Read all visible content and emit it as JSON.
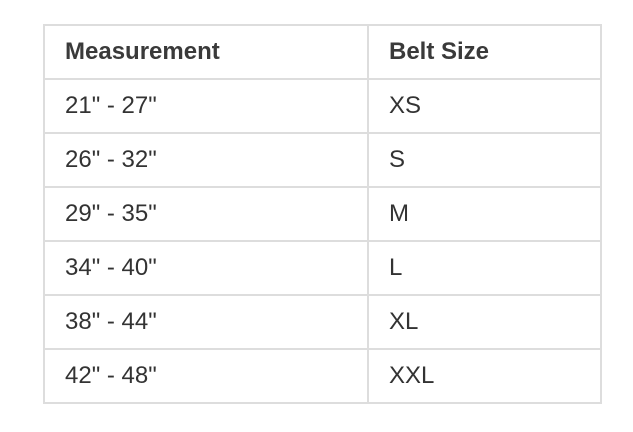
{
  "table": {
    "headers": [
      "Measurement",
      "Belt Size"
    ],
    "rows": [
      [
        "21\" - 27\"",
        "XS"
      ],
      [
        "26\" - 32\"",
        "S"
      ],
      [
        "29\" - 35\"",
        "M"
      ],
      [
        "34\" - 40\"",
        "L"
      ],
      [
        "38\" - 44\"",
        "XL"
      ],
      [
        "42\" - 48\"",
        "XXL"
      ]
    ]
  }
}
